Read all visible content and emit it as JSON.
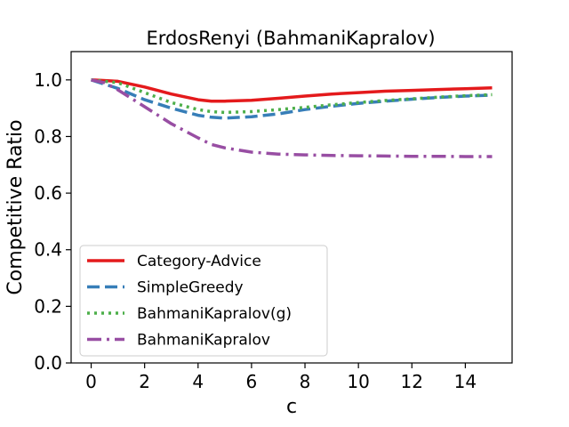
{
  "chart_data": {
    "type": "line",
    "title": "ErdosRenyi (BahmaniKapralov)",
    "xlabel": "c",
    "ylabel": "Competitive Ratio",
    "xlim": [
      -0.75,
      15.75
    ],
    "ylim": [
      0.0,
      1.1
    ],
    "xticks": [
      0,
      2,
      4,
      6,
      8,
      10,
      12,
      14
    ],
    "yticks": [
      0.0,
      0.2,
      0.4,
      0.6,
      0.8,
      1.0
    ],
    "grid": false,
    "legend_position": "lower-left",
    "series": [
      {
        "name": "Category-Advice",
        "color": "#e41a1c",
        "style": "solid",
        "x": [
          0,
          1,
          2,
          3,
          4,
          4.5,
          5,
          6,
          7,
          8,
          9,
          10,
          11,
          12,
          13,
          14,
          15
        ],
        "y": [
          1.0,
          0.995,
          0.975,
          0.95,
          0.93,
          0.925,
          0.925,
          0.928,
          0.935,
          0.943,
          0.95,
          0.955,
          0.96,
          0.963,
          0.966,
          0.969,
          0.972
        ]
      },
      {
        "name": "SimpleGreedy",
        "color": "#377eb8",
        "style": "dashed",
        "x": [
          0,
          1,
          2,
          3,
          4,
          4.5,
          5,
          6,
          7,
          8,
          9,
          10,
          11,
          12,
          13,
          14,
          15
        ],
        "y": [
          1.0,
          0.97,
          0.93,
          0.9,
          0.875,
          0.868,
          0.865,
          0.87,
          0.88,
          0.895,
          0.907,
          0.917,
          0.925,
          0.932,
          0.938,
          0.943,
          0.946
        ]
      },
      {
        "name": "BahmaniKapralov(g)",
        "color": "#4daf4a",
        "style": "dotted",
        "x": [
          0,
          1,
          2,
          3,
          4,
          4.5,
          5,
          6,
          7,
          8,
          9,
          10,
          11,
          12,
          13,
          14,
          15
        ],
        "y": [
          1.0,
          0.99,
          0.955,
          0.92,
          0.895,
          0.888,
          0.885,
          0.888,
          0.895,
          0.903,
          0.912,
          0.92,
          0.927,
          0.933,
          0.939,
          0.944,
          0.948
        ]
      },
      {
        "name": "BahmaniKapralov",
        "color": "#984ea3",
        "style": "dashdot",
        "x": [
          0,
          0.5,
          1,
          2,
          3,
          4,
          4.5,
          5,
          6,
          7,
          8,
          9,
          10,
          11,
          12,
          13,
          14,
          15
        ],
        "y": [
          1.0,
          0.99,
          0.965,
          0.905,
          0.845,
          0.795,
          0.772,
          0.76,
          0.745,
          0.738,
          0.735,
          0.733,
          0.732,
          0.731,
          0.73,
          0.73,
          0.729,
          0.729
        ]
      }
    ]
  }
}
